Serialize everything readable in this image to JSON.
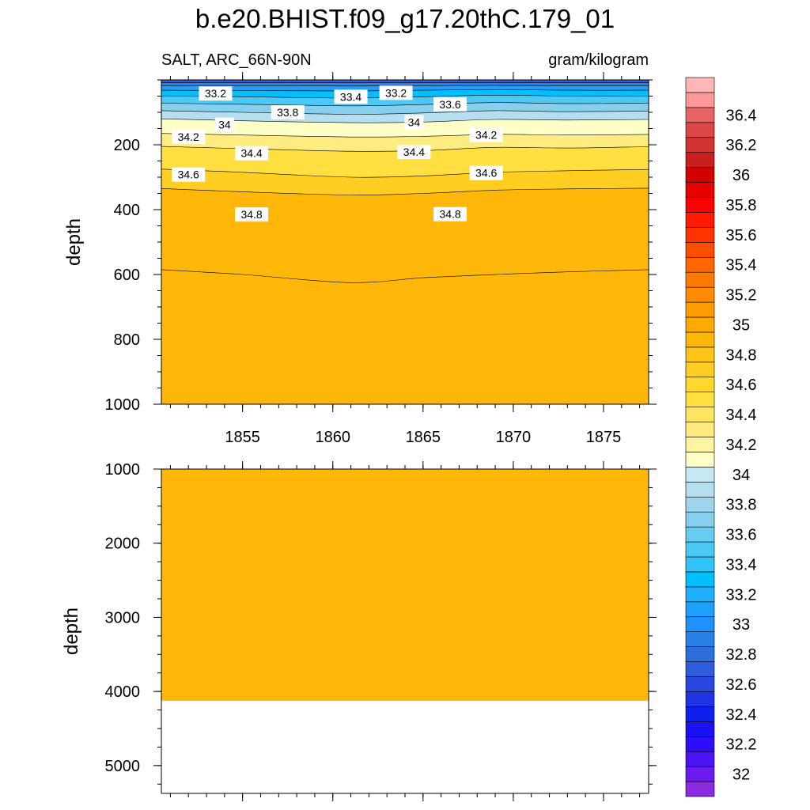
{
  "title": "b.e20.BHIST.f09_g17.20thC.179_01",
  "left_label": "SALT, ARC_66N-90N",
  "right_label": "gram/kilogram",
  "colors": {
    "background": "#ffffff",
    "contour_line": "#000000"
  },
  "chart_data": [
    {
      "type": "contour",
      "panel": "upper",
      "ylabel": "depth",
      "x_range": [
        1850.5,
        1877.5
      ],
      "x_ticks": [
        1855,
        1860,
        1865,
        1870,
        1875
      ],
      "x_tick_labels": [
        "1855",
        "1860",
        "1865",
        "1870",
        "1875"
      ],
      "y_range": [
        0,
        1000
      ],
      "y_reversed": true,
      "y_ticks": [
        200,
        400,
        600,
        800,
        1000
      ],
      "y_tick_labels": [
        "200",
        "400",
        "600",
        "800",
        "1000"
      ],
      "contours": [
        {
          "level": 32.8,
          "depth": [
            8,
            8,
            8,
            8,
            8,
            8,
            8
          ]
        },
        {
          "level": 33.0,
          "depth": [
            18,
            18,
            19,
            18,
            17,
            18,
            18
          ]
        },
        {
          "level": 33.2,
          "depth": [
            32,
            33,
            34,
            32,
            30,
            32,
            32
          ]
        },
        {
          "level": 33.4,
          "depth": [
            50,
            52,
            56,
            52,
            47,
            50,
            50
          ]
        },
        {
          "level": 33.6,
          "depth": [
            72,
            75,
            80,
            76,
            70,
            73,
            72
          ]
        },
        {
          "level": 33.8,
          "depth": [
            95,
            100,
            106,
            102,
            95,
            98,
            96
          ]
        },
        {
          "level": 34.0,
          "depth": [
            120,
            126,
            132,
            130,
            122,
            124,
            122
          ]
        },
        {
          "level": 34.2,
          "depth": [
            165,
            170,
            176,
            174,
            168,
            170,
            168
          ]
        },
        {
          "level": 34.4,
          "depth": [
            205,
            212,
            220,
            218,
            208,
            210,
            206
          ]
        },
        {
          "level": 34.6,
          "depth": [
            275,
            285,
            300,
            296,
            285,
            280,
            276
          ]
        },
        {
          "level": 34.8,
          "depth": [
            335,
            345,
            355,
            350,
            340,
            336,
            334
          ]
        },
        {
          "level": 35.0,
          "depth": [
            585,
            600,
            625,
            610,
            600,
            592,
            585
          ],
          "unlabeled_boundary": true
        }
      ],
      "contour_x": [
        1850.5,
        1855,
        1861,
        1865,
        1869,
        1873,
        1877.5
      ],
      "line_labels": [
        {
          "text": "33.2",
          "x": 1853.5,
          "y": 42
        },
        {
          "text": "33.4",
          "x": 1861.0,
          "y": 52
        },
        {
          "text": "33.2",
          "x": 1863.5,
          "y": 40
        },
        {
          "text": "33.6",
          "x": 1866.5,
          "y": 75
        },
        {
          "text": "33.8",
          "x": 1857.5,
          "y": 100
        },
        {
          "text": "34",
          "x": 1854.0,
          "y": 138
        },
        {
          "text": "34",
          "x": 1864.5,
          "y": 130
        },
        {
          "text": "34.2",
          "x": 1852.0,
          "y": 176
        },
        {
          "text": "34.2",
          "x": 1868.5,
          "y": 170
        },
        {
          "text": "34.4",
          "x": 1855.5,
          "y": 226
        },
        {
          "text": "34.4",
          "x": 1864.5,
          "y": 222
        },
        {
          "text": "34.6",
          "x": 1852.0,
          "y": 292
        },
        {
          "text": "34.6",
          "x": 1868.5,
          "y": 287
        },
        {
          "text": "34.8",
          "x": 1855.5,
          "y": 415
        },
        {
          "text": "34.8",
          "x": 1866.5,
          "y": 414
        }
      ]
    },
    {
      "type": "contour",
      "panel": "lower",
      "ylabel": "depth",
      "x_range": [
        1850.5,
        1877.5
      ],
      "y_range": [
        1000,
        5375
      ],
      "y_reversed": true,
      "y_ticks": [
        1000,
        2000,
        3000,
        4000,
        5000
      ],
      "y_tick_labels": [
        "1000",
        "2000",
        "3000",
        "4000",
        "5000"
      ],
      "filled_level": 34.9,
      "filled_to_depth": 4125
    }
  ],
  "colorbar": {
    "boundaries": [
      31.9,
      32.0,
      32.1,
      32.2,
      32.3,
      32.4,
      32.5,
      32.6,
      32.7,
      32.8,
      32.9,
      33.0,
      33.1,
      33.2,
      33.3,
      33.4,
      33.5,
      33.6,
      33.7,
      33.8,
      33.9,
      34.0,
      34.1,
      34.2,
      34.3,
      34.4,
      34.5,
      34.6,
      34.7,
      34.8,
      34.9,
      35.0,
      35.1,
      35.2,
      35.3,
      35.4,
      35.5,
      35.6,
      35.7,
      35.8,
      35.9,
      36.0,
      36.1,
      36.2,
      36.3,
      36.4,
      36.5,
      36.6
    ],
    "tick_labels": [
      "32",
      "32.2",
      "32.4",
      "32.6",
      "32.8",
      "33",
      "33.2",
      "33.4",
      "33.6",
      "33.8",
      "34",
      "34.2",
      "34.4",
      "34.6",
      "34.8",
      "35",
      "35.2",
      "35.4",
      "35.6",
      "35.8",
      "36",
      "36.2",
      "36.4"
    ],
    "tick_values": [
      32.0,
      32.2,
      32.4,
      32.6,
      32.8,
      33.0,
      33.2,
      33.4,
      33.6,
      33.8,
      34.0,
      34.2,
      34.4,
      34.6,
      34.8,
      35.0,
      35.2,
      35.4,
      35.6,
      35.8,
      36.0,
      36.2,
      36.4
    ],
    "colors": [
      "#8a2be2",
      "#6a1cf0",
      "#4b14f5",
      "#2e0ef8",
      "#1a12f6",
      "#0f1ff0",
      "#1e34e6",
      "#2a48e0",
      "#2e5cdc",
      "#2d6edc",
      "#2a80e6",
      "#1e90ff",
      "#1ea0ff",
      "#1eb0ff",
      "#00bfff",
      "#30c4f8",
      "#4cc8f4",
      "#66ccf0",
      "#86d0ee",
      "#9fd6ee",
      "#b5dfef",
      "#c7e8f2",
      "#ffffc8",
      "#fff4a0",
      "#ffec80",
      "#ffe660",
      "#ffe040",
      "#ffd82c",
      "#ffce20",
      "#ffc418",
      "#ffb80a",
      "#ffaa00",
      "#ff9c00",
      "#ff8c00",
      "#ff7a00",
      "#ff6600",
      "#ff4d00",
      "#ff3300",
      "#ff1a00",
      "#ff0000",
      "#e60000",
      "#d20000",
      "#c81e1e",
      "#d23232",
      "#dc4646",
      "#e66464",
      "#ff9999",
      "#ffb6b6"
    ]
  }
}
